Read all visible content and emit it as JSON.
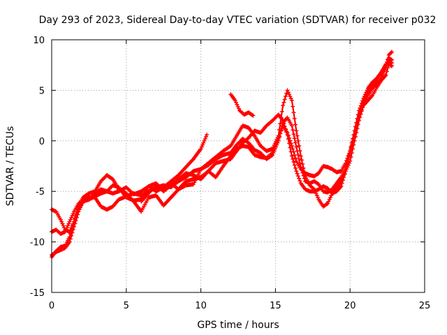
{
  "chart_data": {
    "type": "scatter",
    "title": "Day 293 of 2023, Sidereal Day-to-day VTEC variation (SDTVAR) for receiver p032",
    "xlabel": "GPS time / hours",
    "ylabel": "SDTVAR / TECUs",
    "xlim": [
      0,
      25
    ],
    "ylim": [
      -15,
      10
    ],
    "xticks": [
      0,
      5,
      10,
      15,
      20,
      25
    ],
    "yticks": [
      -15,
      -10,
      -5,
      0,
      5,
      10
    ],
    "grid": true,
    "marker": "plus",
    "color": "#ff0000",
    "series": [
      {
        "x": [
          0.0,
          0.3,
          0.6,
          0.9,
          1.2,
          1.5,
          1.8,
          2.1,
          2.5,
          2.9,
          3.3,
          3.7,
          4.1,
          4.5,
          5.0,
          5.5,
          6.0,
          6.5,
          7.0,
          7.5,
          8.0,
          8.5,
          9.0,
          9.5,
          10.0,
          10.5,
          11.0,
          11.5,
          12.0,
          12.4,
          12.8,
          13.2,
          13.6,
          14.0,
          14.4,
          14.8,
          15.2,
          15.5,
          15.8,
          16.1,
          16.4,
          16.7,
          17.0,
          17.3,
          17.6,
          17.9,
          18.2,
          18.5,
          18.8,
          19.1,
          19.4,
          19.7,
          20.0,
          20.3,
          20.6,
          20.9,
          21.2,
          21.5,
          21.8,
          22.1,
          22.4,
          22.6,
          22.8
        ],
        "y": [
          -11.3,
          -11.0,
          -10.8,
          -10.6,
          -10.0,
          -8.5,
          -7.0,
          -6.0,
          -5.8,
          -5.5,
          -5.2,
          -5.0,
          -5.2,
          -5.0,
          -4.6,
          -5.3,
          -5.0,
          -4.5,
          -5.0,
          -4.6,
          -4.2,
          -4.8,
          -4.0,
          -3.8,
          -3.6,
          -3.0,
          -2.2,
          -2.0,
          -1.8,
          -1.0,
          -0.2,
          0.3,
          1.0,
          0.8,
          1.5,
          2.0,
          2.6,
          2.0,
          0.6,
          -1.5,
          -3.0,
          -4.2,
          -4.8,
          -5.0,
          -5.0,
          -4.8,
          -4.5,
          -4.7,
          -5.2,
          -5.0,
          -4.5,
          -3.0,
          -1.0,
          1.0,
          3.0,
          4.2,
          5.2,
          5.8,
          6.2,
          6.8,
          7.5,
          7.9,
          7.7
        ]
      },
      {
        "x": [
          0.0,
          0.3,
          0.6,
          0.9,
          1.2,
          1.5,
          1.8,
          2.1,
          2.5,
          2.9,
          3.3,
          3.7,
          4.1,
          4.5,
          5.0,
          5.5,
          6.0,
          6.5,
          7.0,
          7.5,
          8.0,
          8.5,
          9.0,
          9.5,
          10.0,
          10.5,
          11.0,
          11.5,
          12.0,
          12.4,
          12.8,
          13.2,
          13.6,
          14.0,
          14.4,
          14.8,
          15.2,
          15.5,
          15.8,
          16.1,
          16.4,
          16.7,
          17.0,
          17.3,
          17.6,
          17.9,
          18.2,
          18.5,
          18.8,
          19.1,
          19.4,
          19.7,
          20.0,
          20.3,
          20.6,
          20.9,
          21.2,
          21.5,
          21.8,
          22.1,
          22.4,
          22.6,
          22.8
        ],
        "y": [
          -9.0,
          -8.8,
          -9.2,
          -9.0,
          -8.0,
          -7.0,
          -6.2,
          -6.0,
          -5.6,
          -5.6,
          -6.5,
          -6.8,
          -6.5,
          -5.8,
          -5.5,
          -5.2,
          -5.4,
          -5.0,
          -4.6,
          -4.4,
          -4.6,
          -4.0,
          -3.6,
          -3.0,
          -2.8,
          -2.2,
          -1.6,
          -1.0,
          -0.5,
          0.5,
          1.5,
          1.3,
          0.5,
          -0.5,
          -1.0,
          -0.8,
          0.5,
          3.5,
          5.0,
          4.0,
          1.0,
          -1.5,
          -3.5,
          -4.4,
          -4.8,
          -5.8,
          -6.5,
          -6.2,
          -5.2,
          -4.6,
          -4.0,
          -3.0,
          -2.0,
          0.0,
          2.0,
          3.6,
          4.5,
          5.2,
          5.6,
          6.3,
          7.2,
          8.5,
          8.8
        ]
      },
      {
        "x": [
          0.0,
          0.3,
          0.6,
          0.9,
          1.2,
          1.5,
          1.8,
          2.1,
          2.5,
          2.9,
          3.3,
          3.7,
          4.1,
          4.5,
          5.0,
          5.5,
          6.0,
          6.5,
          7.0,
          7.5,
          8.0,
          8.5,
          9.0,
          9.5,
          10.0,
          10.5,
          11.0,
          11.5,
          12.0,
          12.4,
          12.8,
          13.2,
          13.6,
          14.0,
          14.4,
          14.8,
          15.2,
          15.5,
          15.8,
          16.1,
          16.4,
          16.7,
          17.0,
          17.3,
          17.6,
          17.9,
          18.2,
          18.5,
          18.8,
          19.1,
          19.4,
          19.7,
          20.0,
          20.3,
          20.6,
          20.9,
          21.2,
          21.5,
          21.8,
          22.1,
          22.4,
          22.6,
          22.8
        ],
        "y": [
          -6.8,
          -7.0,
          -7.8,
          -8.8,
          -9.0,
          -8.0,
          -6.8,
          -6.0,
          -5.8,
          -5.2,
          -4.8,
          -5.0,
          -4.4,
          -4.6,
          -5.6,
          -5.9,
          -5.8,
          -4.5,
          -4.2,
          -5.0,
          -4.4,
          -3.8,
          -3.2,
          -3.4,
          -3.8,
          -3.0,
          -3.6,
          -2.5,
          -1.5,
          -0.8,
          -0.5,
          -0.6,
          -1.4,
          -1.6,
          -1.7,
          -1.2,
          0.2,
          1.5,
          0.8,
          -0.5,
          -2.0,
          -2.8,
          -3.2,
          -3.4,
          -3.5,
          -3.2,
          -2.5,
          -2.6,
          -2.8,
          -3.1,
          -3.0,
          -2.2,
          -1.0,
          0.5,
          2.5,
          3.5,
          4.0,
          4.5,
          5.3,
          6.0,
          6.5,
          7.6,
          7.4
        ]
      },
      {
        "x": [
          0.0,
          0.3,
          0.6,
          0.9,
          1.2,
          1.5,
          1.8,
          2.1,
          2.5,
          2.9,
          3.3,
          3.7,
          4.1,
          4.5,
          5.0,
          5.5,
          6.0,
          6.5,
          7.0,
          7.5,
          8.0,
          8.5,
          9.0,
          9.5,
          10.0,
          10.5,
          11.0,
          11.5,
          12.0,
          12.4,
          12.8,
          13.2,
          13.6,
          14.0,
          14.4,
          14.8,
          15.2,
          15.5,
          15.8,
          16.1,
          16.4,
          16.7,
          17.0,
          17.3,
          17.6,
          17.9,
          18.2,
          18.5,
          18.8,
          19.1,
          19.4,
          19.7,
          20.0,
          20.3,
          20.6,
          20.9,
          21.2,
          21.5,
          21.8,
          22.1,
          22.4,
          22.6,
          22.8
        ],
        "y": [
          -11.5,
          -10.9,
          -10.5,
          -10.4,
          -9.5,
          -8.0,
          -6.4,
          -5.6,
          -5.2,
          -5.0,
          -4.0,
          -3.4,
          -3.8,
          -4.8,
          -5.2,
          -6.0,
          -7.0,
          -5.6,
          -5.4,
          -6.4,
          -5.6,
          -4.8,
          -4.4,
          -4.3,
          -2.8,
          -2.4,
          -1.8,
          -1.4,
          -1.2,
          -0.4,
          0.2,
          -0.2,
          -0.9,
          -1.2,
          -1.8,
          -1.4,
          0.0,
          1.8,
          2.3,
          1.5,
          -0.6,
          -2.6,
          -4.0,
          -4.2,
          -4.0,
          -4.3,
          -5.0,
          -5.1,
          -4.8,
          -4.2,
          -3.6,
          -2.8,
          -1.2,
          0.6,
          2.6,
          3.8,
          4.8,
          5.5,
          6.0,
          6.8,
          7.6,
          8.2,
          8.0
        ]
      },
      {
        "x": [
          6.0,
          6.3,
          6.6,
          7.0,
          7.5,
          8.0,
          8.5,
          9.0,
          9.5,
          10.0,
          10.4
        ],
        "y": [
          -6.0,
          -5.5,
          -5.0,
          -4.5,
          -4.6,
          -4.0,
          -3.4,
          -2.6,
          -1.8,
          -0.8,
          0.6
        ]
      },
      {
        "x": [
          12.0,
          12.3,
          12.6,
          12.9,
          13.2,
          13.5
        ],
        "y": [
          4.6,
          4.0,
          3.0,
          2.6,
          2.8,
          2.5
        ]
      }
    ]
  }
}
